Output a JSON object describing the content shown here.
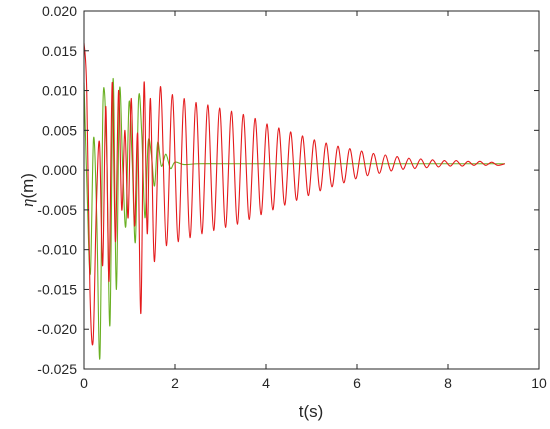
{
  "chart_data": {
    "type": "line",
    "title": "",
    "xlabel": "t(s)",
    "ylabel_symbol": "η",
    "ylabel_unit": "(m)",
    "xlim": [
      0,
      10
    ],
    "ylim": [
      -0.025,
      0.02
    ],
    "x_ticks": [
      "0",
      "2",
      "4",
      "6",
      "8",
      "10"
    ],
    "y_ticks": [
      "-0.025",
      "-0.020",
      "-0.015",
      "-0.010",
      "-0.005",
      "0.000",
      "0.005",
      "0.010",
      "0.015",
      "0.020"
    ],
    "grid": false,
    "legend": "none",
    "series": [
      {
        "color": "#e41a1c",
        "x": [
          0,
          0.06,
          0.13,
          0.2,
          0.27,
          0.34,
          0.41,
          0.48,
          0.55,
          0.62,
          0.69,
          0.76,
          0.83,
          0.9,
          0.97,
          1.04,
          1.11,
          1.18,
          1.25,
          1.32,
          1.39,
          1.46,
          1.55,
          1.68,
          1.81,
          1.94,
          2.07,
          2.2,
          2.33,
          2.46,
          2.59,
          2.72,
          2.85,
          2.98,
          3.11,
          3.24,
          3.37,
          3.5,
          3.63,
          3.76,
          3.89,
          4.02,
          4.15,
          4.28,
          4.41,
          4.54,
          4.67,
          4.8,
          4.93,
          5.06,
          5.19,
          5.32,
          5.45,
          5.58,
          5.71,
          5.84,
          5.97,
          6.1,
          6.23,
          6.36,
          6.49,
          6.62,
          6.75,
          6.88,
          7.01,
          7.14,
          7.27,
          7.4,
          7.53,
          7.66,
          7.79,
          7.92,
          8.05,
          8.18,
          8.31,
          8.44,
          8.57,
          8.7,
          8.83,
          8.96,
          9.09,
          9.25
        ],
        "y": [
          0.016,
          0.01,
          -0.015,
          -0.0215,
          -0.005,
          0.0035,
          -0.012,
          0.008,
          -0.014,
          0.011,
          -0.009,
          0.01,
          -0.005,
          0.005,
          -0.006,
          0.009,
          -0.007,
          0.0045,
          -0.018,
          0.011,
          -0.008,
          0.009,
          -0.0115,
          0.0105,
          -0.0095,
          0.0095,
          -0.009,
          0.009,
          -0.0085,
          0.0085,
          -0.008,
          0.0082,
          -0.0076,
          0.0078,
          -0.0072,
          0.0074,
          -0.0068,
          0.007,
          -0.0062,
          0.0065,
          -0.0056,
          0.0058,
          -0.005,
          0.0053,
          -0.0044,
          0.0048,
          -0.0038,
          0.0043,
          -0.0032,
          0.0038,
          -0.0026,
          0.0034,
          -0.0021,
          0.003,
          -0.0016,
          0.0027,
          -0.0011,
          0.0024,
          -0.0007,
          0.0021,
          -0.0004,
          0.0019,
          -0.0001,
          0.0017,
          0.0001,
          0.0015,
          0.0002,
          0.0014,
          0.0003,
          0.0013,
          0.0004,
          0.0012,
          0.0005,
          0.0012,
          0.0005,
          0.0011,
          0.0006,
          0.0011,
          0.0006,
          0.001,
          0.0006,
          0.0008
        ]
      },
      {
        "color": "#6ab023",
        "x": [
          0,
          0.07,
          0.14,
          0.21,
          0.28,
          0.35,
          0.42,
          0.5,
          0.57,
          0.64,
          0.71,
          0.78,
          0.85,
          0.92,
          0.99,
          1.06,
          1.13,
          1.2,
          1.27,
          1.34,
          1.41,
          1.48,
          1.55,
          1.62,
          1.7,
          1.8,
          1.9,
          2.0,
          2.2,
          2.5,
          3.0,
          4.0,
          5.0,
          6.0,
          7.0,
          8.0,
          9.0,
          9.25
        ],
        "y": [
          0.011,
          -0.003,
          -0.013,
          0.004,
          -0.006,
          -0.0235,
          0.009,
          0.002,
          -0.0195,
          0.0115,
          -0.015,
          0.01,
          0.0005,
          -0.007,
          0.0085,
          0.001,
          -0.009,
          0.009,
          0.0045,
          -0.006,
          0.0035,
          0.002,
          -0.002,
          0.0035,
          0.0005,
          0.002,
          0.0002,
          0.001,
          0.0007,
          0.0008,
          0.0008,
          0.0008,
          0.0008,
          0.0008,
          0.0008,
          0.0008,
          0.0008,
          0.0008
        ]
      }
    ]
  }
}
